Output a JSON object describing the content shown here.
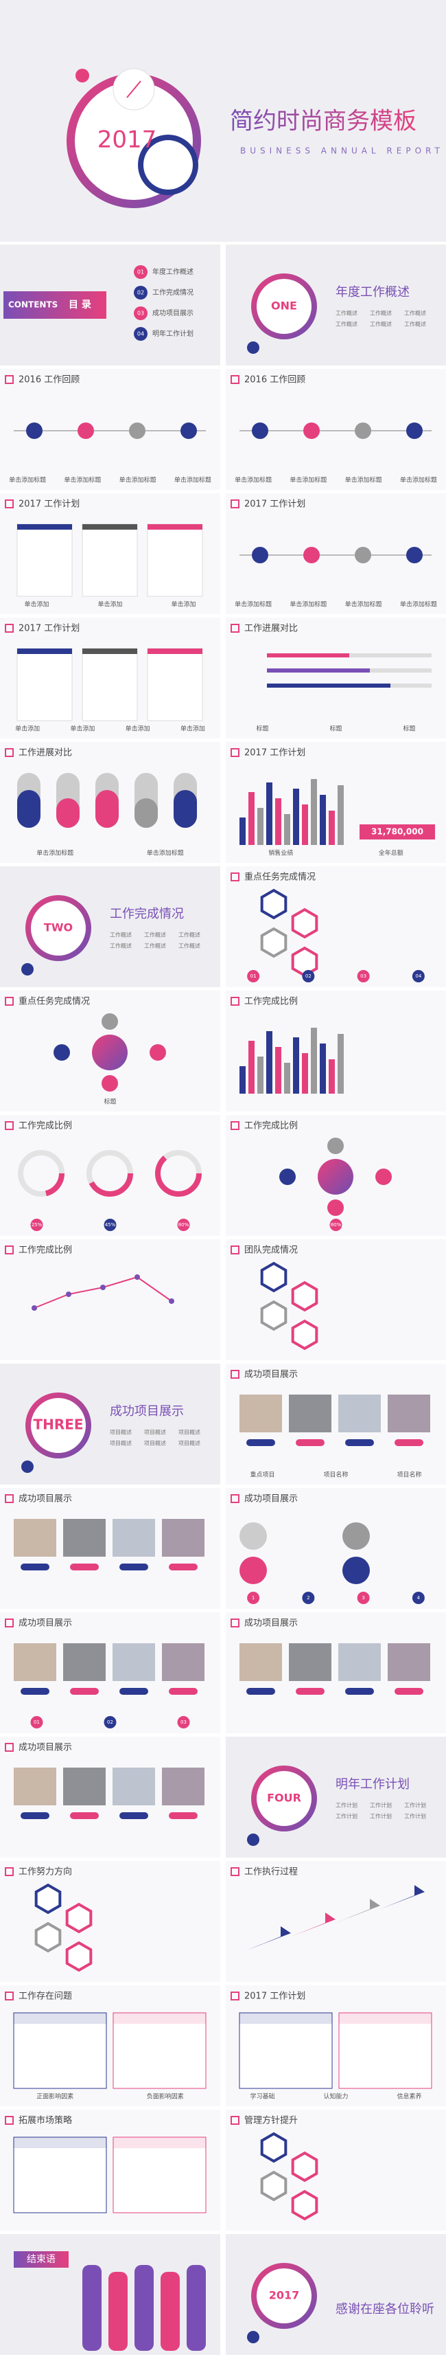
{
  "hero": {
    "year": "2017",
    "title": "简约时尚商务模板",
    "subtitle": "BUSINESS ANNUAL REPORT"
  },
  "slides": [
    {
      "badge": "CONTENTS",
      "title": "目 录",
      "numbers": [
        "01",
        "02",
        "03",
        "04"
      ],
      "items": [
        "年度工作概述",
        "工作完成情况",
        "成功项目展示",
        "明年工作计划"
      ]
    },
    {
      "badge": "ONE",
      "title": "年度工作概述",
      "items": [
        "工作概述",
        "工作概述",
        "工作概述",
        "工作概述",
        "工作概述",
        "工作概述"
      ]
    },
    {
      "title": "2016 工作回顾",
      "items": [
        "单击添加标题",
        "单击添加标题",
        "单击添加标题",
        "单击添加标题"
      ]
    },
    {
      "title": "2016 工作回顾",
      "items": [
        "单击添加标题",
        "单击添加标题",
        "单击添加标题",
        "单击添加标题"
      ]
    },
    {
      "title": "2017 工作计划",
      "items": [
        "单击添加",
        "单击添加",
        "单击添加"
      ]
    },
    {
      "title": "2017 工作计划",
      "items": [
        "单击添加标题",
        "单击添加标题",
        "单击添加标题",
        "单击添加标题"
      ]
    },
    {
      "title": "2017 工作计划",
      "items": [
        "单击添加",
        "单击添加",
        "单击添加",
        "单击添加"
      ]
    },
    {
      "title": "工作进展对比",
      "items": [
        "标题",
        "标题",
        "标题"
      ]
    },
    {
      "title": "工作进展对比",
      "items": [
        "单击添加标题",
        "单击添加标题"
      ]
    },
    {
      "title": "2017 工作计划",
      "items": [
        "销售业绩",
        "全年总额"
      ],
      "highlight": "31,780,000"
    },
    {
      "badge": "TWO",
      "title": "工作完成情况",
      "items": [
        "工作概述",
        "工作概述",
        "工作概述",
        "工作概述",
        "工作概述",
        "工作概述"
      ]
    },
    {
      "title": "重点任务完成情况",
      "numbers": [
        "01",
        "02",
        "03",
        "04"
      ]
    },
    {
      "title": "重点任务完成情况",
      "items": [
        "标题"
      ]
    },
    {
      "title": "工作完成比例"
    },
    {
      "title": "工作完成比例",
      "numbers": [
        "25%",
        "45%",
        "80%"
      ]
    },
    {
      "title": "工作完成比例",
      "numbers": [
        "80%"
      ]
    },
    {
      "title": "工作完成比例"
    },
    {
      "title": "团队完成情况"
    },
    {
      "badge": "THREE",
      "title": "成功项目展示",
      "items": [
        "项目概述",
        "项目概述",
        "项目概述",
        "项目概述",
        "项目概述",
        "项目概述"
      ]
    },
    {
      "title": "成功项目展示",
      "items": [
        "重点项目",
        "项目名称",
        "项目名称"
      ]
    },
    {
      "title": "成功项目展示"
    },
    {
      "title": "成功项目展示",
      "numbers": [
        "1",
        "2",
        "3",
        "4"
      ]
    },
    {
      "title": "成功项目展示",
      "numbers": [
        "01",
        "02",
        "03"
      ]
    },
    {
      "title": "成功项目展示"
    },
    {
      "title": "成功项目展示"
    },
    {
      "badge": "FOUR",
      "title": "明年工作计划",
      "items": [
        "工作计划",
        "工作计划",
        "工作计划",
        "工作计划",
        "工作计划",
        "工作计划"
      ]
    },
    {
      "title": "工作努力方向"
    },
    {
      "title": "工作执行过程"
    },
    {
      "title": "工作存在问题",
      "items": [
        "正面影响因素",
        "负面影响因素"
      ]
    },
    {
      "title": "2017 工作计划",
      "items": [
        "学习基础",
        "认知能力",
        "信息素养"
      ]
    },
    {
      "title": "拓展市场策略"
    },
    {
      "title": "管理方针提升"
    },
    {
      "badge": "结束语"
    },
    {
      "badge": "2017",
      "title": "感谢在座各位聆听"
    }
  ]
}
